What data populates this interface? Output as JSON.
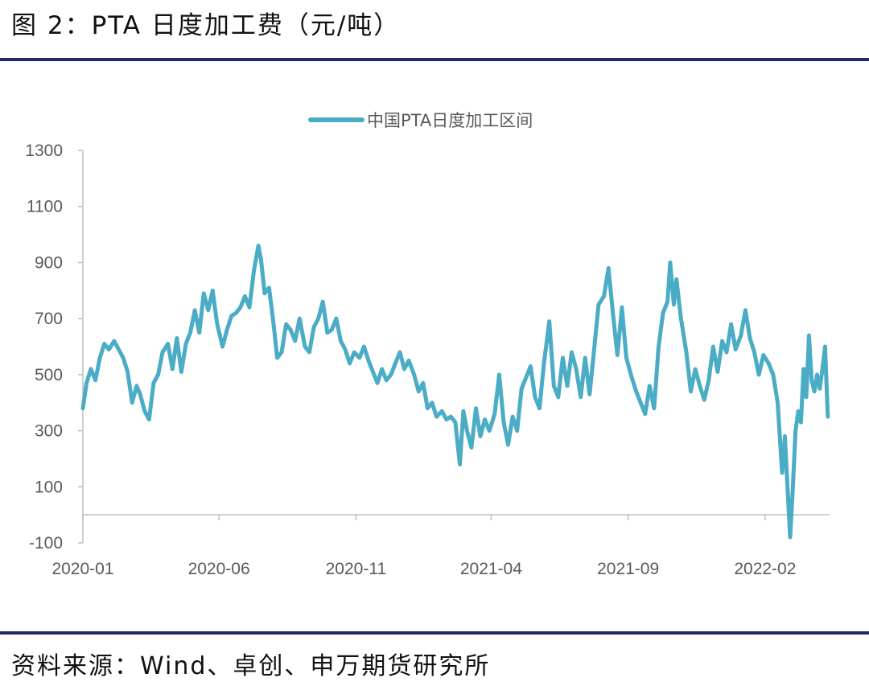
{
  "figure": {
    "title": "图 2：PTA 日度加工费（元/吨）",
    "source": "资料来源：Wind、卓创、申万期货研究所"
  },
  "chart_data": {
    "type": "line",
    "ylim": [
      -100,
      1300
    ],
    "yticks": [
      -100,
      100,
      300,
      500,
      700,
      900,
      1100,
      1300
    ],
    "xticks": [
      "2020-01",
      "2020-06",
      "2020-11",
      "2021-04",
      "2021-09",
      "2022-02"
    ],
    "xlim": [
      "2020-01",
      "2022-05"
    ],
    "legend_position": "top-center",
    "series": [
      {
        "name": "中国PTA日度加工区间",
        "color": "#4bacc6",
        "points": [
          [
            "2020-01-01",
            380
          ],
          [
            "2020-01-05",
            470
          ],
          [
            "2020-01-10",
            520
          ],
          [
            "2020-01-15",
            480
          ],
          [
            "2020-01-20",
            560
          ],
          [
            "2020-01-25",
            610
          ],
          [
            "2020-01-30",
            590
          ],
          [
            "2020-02-05",
            620
          ],
          [
            "2020-02-10",
            590
          ],
          [
            "2020-02-15",
            560
          ],
          [
            "2020-02-20",
            510
          ],
          [
            "2020-02-25",
            400
          ],
          [
            "2020-03-01",
            460
          ],
          [
            "2020-03-05",
            430
          ],
          [
            "2020-03-10",
            370
          ],
          [
            "2020-03-15",
            340
          ],
          [
            "2020-03-20",
            470
          ],
          [
            "2020-03-25",
            500
          ],
          [
            "2020-03-30",
            580
          ],
          [
            "2020-04-05",
            610
          ],
          [
            "2020-04-10",
            520
          ],
          [
            "2020-04-15",
            630
          ],
          [
            "2020-04-20",
            510
          ],
          [
            "2020-04-25",
            610
          ],
          [
            "2020-04-30",
            650
          ],
          [
            "2020-05-05",
            730
          ],
          [
            "2020-05-10",
            650
          ],
          [
            "2020-05-15",
            790
          ],
          [
            "2020-05-20",
            730
          ],
          [
            "2020-05-25",
            800
          ],
          [
            "2020-05-30",
            680
          ],
          [
            "2020-06-05",
            600
          ],
          [
            "2020-06-10",
            660
          ],
          [
            "2020-06-15",
            710
          ],
          [
            "2020-06-20",
            720
          ],
          [
            "2020-06-25",
            740
          ],
          [
            "2020-06-30",
            780
          ],
          [
            "2020-07-05",
            740
          ],
          [
            "2020-07-10",
            870
          ],
          [
            "2020-07-15",
            960
          ],
          [
            "2020-07-18",
            910
          ],
          [
            "2020-07-22",
            790
          ],
          [
            "2020-07-27",
            810
          ],
          [
            "2020-08-01",
            680
          ],
          [
            "2020-08-05",
            560
          ],
          [
            "2020-08-10",
            580
          ],
          [
            "2020-08-15",
            680
          ],
          [
            "2020-08-20",
            660
          ],
          [
            "2020-08-25",
            620
          ],
          [
            "2020-08-30",
            700
          ],
          [
            "2020-09-05",
            600
          ],
          [
            "2020-09-10",
            580
          ],
          [
            "2020-09-15",
            670
          ],
          [
            "2020-09-20",
            700
          ],
          [
            "2020-09-25",
            760
          ],
          [
            "2020-09-30",
            650
          ],
          [
            "2020-10-05",
            660
          ],
          [
            "2020-10-10",
            700
          ],
          [
            "2020-10-15",
            620
          ],
          [
            "2020-10-20",
            590
          ],
          [
            "2020-10-25",
            540
          ],
          [
            "2020-10-30",
            580
          ],
          [
            "2020-11-05",
            560
          ],
          [
            "2020-11-10",
            600
          ],
          [
            "2020-11-15",
            550
          ],
          [
            "2020-11-20",
            510
          ],
          [
            "2020-11-25",
            470
          ],
          [
            "2020-11-30",
            520
          ],
          [
            "2020-12-05",
            480
          ],
          [
            "2020-12-10",
            500
          ],
          [
            "2020-12-15",
            540
          ],
          [
            "2020-12-20",
            580
          ],
          [
            "2020-12-25",
            520
          ],
          [
            "2020-12-30",
            550
          ],
          [
            "2021-01-05",
            500
          ],
          [
            "2021-01-10",
            440
          ],
          [
            "2021-01-15",
            470
          ],
          [
            "2021-01-20",
            380
          ],
          [
            "2021-01-25",
            400
          ],
          [
            "2021-01-30",
            350
          ],
          [
            "2021-02-05",
            370
          ],
          [
            "2021-02-10",
            340
          ],
          [
            "2021-02-15",
            350
          ],
          [
            "2021-02-20",
            330
          ],
          [
            "2021-02-25",
            180
          ],
          [
            "2021-03-01",
            370
          ],
          [
            "2021-03-05",
            300
          ],
          [
            "2021-03-10",
            240
          ],
          [
            "2021-03-15",
            380
          ],
          [
            "2021-03-20",
            280
          ],
          [
            "2021-03-25",
            340
          ],
          [
            "2021-03-30",
            300
          ],
          [
            "2021-04-05",
            360
          ],
          [
            "2021-04-10",
            500
          ],
          [
            "2021-04-15",
            330
          ],
          [
            "2021-04-20",
            250
          ],
          [
            "2021-04-25",
            350
          ],
          [
            "2021-04-30",
            300
          ],
          [
            "2021-05-05",
            450
          ],
          [
            "2021-05-10",
            490
          ],
          [
            "2021-05-15",
            530
          ],
          [
            "2021-05-20",
            420
          ],
          [
            "2021-05-25",
            380
          ],
          [
            "2021-05-30",
            540
          ],
          [
            "2021-06-05",
            690
          ],
          [
            "2021-06-10",
            460
          ],
          [
            "2021-06-15",
            420
          ],
          [
            "2021-06-20",
            560
          ],
          [
            "2021-06-25",
            460
          ],
          [
            "2021-06-30",
            580
          ],
          [
            "2021-07-05",
            520
          ],
          [
            "2021-07-10",
            420
          ],
          [
            "2021-07-15",
            560
          ],
          [
            "2021-07-20",
            430
          ],
          [
            "2021-07-25",
            590
          ],
          [
            "2021-07-30",
            750
          ],
          [
            "2021-08-05",
            780
          ],
          [
            "2021-08-10",
            880
          ],
          [
            "2021-08-15",
            720
          ],
          [
            "2021-08-20",
            570
          ],
          [
            "2021-08-25",
            740
          ],
          [
            "2021-08-30",
            560
          ],
          [
            "2021-09-05",
            490
          ],
          [
            "2021-09-10",
            440
          ],
          [
            "2021-09-15",
            400
          ],
          [
            "2021-09-20",
            360
          ],
          [
            "2021-09-25",
            460
          ],
          [
            "2021-09-30",
            380
          ],
          [
            "2021-10-05",
            600
          ],
          [
            "2021-10-10",
            720
          ],
          [
            "2021-10-15",
            760
          ],
          [
            "2021-10-18",
            900
          ],
          [
            "2021-10-22",
            750
          ],
          [
            "2021-10-25",
            840
          ],
          [
            "2021-10-30",
            700
          ],
          [
            "2021-11-05",
            580
          ],
          [
            "2021-11-10",
            440
          ],
          [
            "2021-11-15",
            520
          ],
          [
            "2021-11-20",
            460
          ],
          [
            "2021-11-25",
            410
          ],
          [
            "2021-11-30",
            480
          ],
          [
            "2021-12-05",
            600
          ],
          [
            "2021-12-10",
            510
          ],
          [
            "2021-12-15",
            620
          ],
          [
            "2021-12-20",
            580
          ],
          [
            "2021-12-25",
            680
          ],
          [
            "2021-12-30",
            590
          ],
          [
            "2022-01-05",
            640
          ],
          [
            "2022-01-10",
            730
          ],
          [
            "2022-01-15",
            630
          ],
          [
            "2022-01-20",
            580
          ],
          [
            "2022-01-25",
            500
          ],
          [
            "2022-01-30",
            570
          ],
          [
            "2022-02-05",
            540
          ],
          [
            "2022-02-10",
            500
          ],
          [
            "2022-02-15",
            400
          ],
          [
            "2022-02-20",
            150
          ],
          [
            "2022-02-23",
            280
          ],
          [
            "2022-02-26",
            100
          ],
          [
            "2022-03-01",
            -80
          ],
          [
            "2022-03-04",
            100
          ],
          [
            "2022-03-07",
            300
          ],
          [
            "2022-03-10",
            370
          ],
          [
            "2022-03-13",
            330
          ],
          [
            "2022-03-16",
            520
          ],
          [
            "2022-03-19",
            420
          ],
          [
            "2022-03-22",
            640
          ],
          [
            "2022-03-25",
            480
          ],
          [
            "2022-03-28",
            440
          ],
          [
            "2022-03-31",
            500
          ],
          [
            "2022-04-03",
            450
          ],
          [
            "2022-04-06",
            520
          ],
          [
            "2022-04-09",
            600
          ],
          [
            "2022-04-12",
            350
          ]
        ]
      }
    ]
  }
}
